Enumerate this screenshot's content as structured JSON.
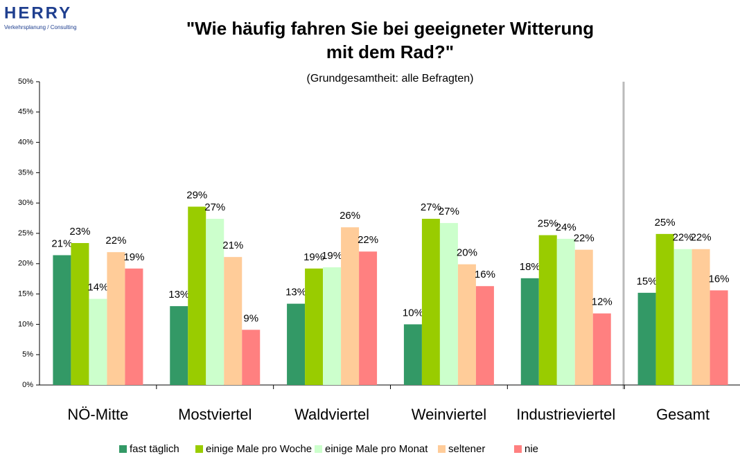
{
  "logo": {
    "name": "HERRY",
    "tagline": "Verkehrsplanung / Consulting"
  },
  "chart_data": {
    "type": "bar",
    "title": [
      "\"Wie häufig fahren Sie bei geeigneter Witterung",
      "mit dem Rad?\""
    ],
    "subtitle": "(Grundgesamtheit: alle Befragten)",
    "categories": [
      "NÖ-Mitte",
      "Mostviertel",
      "Waldviertel",
      "Weinviertel",
      "Industrieviertel",
      "Gesamt"
    ],
    "series": [
      {
        "name": "fast täglich",
        "color": "#339966",
        "values": [
          21.4,
          13.0,
          13.4,
          10.0,
          17.6,
          15.2
        ],
        "value_labels": [
          "21%",
          "13%",
          "13%",
          "10%",
          "18%",
          "15%"
        ]
      },
      {
        "name": "einige Male pro Woche",
        "color": "#99cc00",
        "values": [
          23.4,
          29.4,
          19.2,
          27.4,
          24.7,
          24.9
        ],
        "value_labels": [
          "23%",
          "29%",
          "19%",
          "27%",
          "25%",
          "25%"
        ]
      },
      {
        "name": "einige Male pro Monat",
        "color": "#ccffcc",
        "values": [
          14.2,
          27.4,
          19.4,
          26.7,
          24.1,
          22.4
        ],
        "value_labels": [
          "14%",
          "27%",
          "19%",
          "27%",
          "24%",
          "22%"
        ]
      },
      {
        "name": "seltener",
        "color": "#ffcc99",
        "values": [
          21.9,
          21.1,
          26.0,
          19.9,
          22.3,
          22.4
        ],
        "value_labels": [
          "22%",
          "21%",
          "26%",
          "20%",
          "22%",
          "22%"
        ]
      },
      {
        "name": "nie",
        "color": "#ff8080",
        "values": [
          19.2,
          9.1,
          22.0,
          16.3,
          11.8,
          15.6
        ],
        "value_labels": [
          "19%",
          "9%",
          "22%",
          "16%",
          "12%",
          "16%"
        ]
      }
    ],
    "ylim": [
      0,
      50
    ],
    "yticks": [
      {
        "value": 0,
        "label": "0%"
      },
      {
        "value": 5,
        "label": "5%"
      },
      {
        "value": 10,
        "label": "10%"
      },
      {
        "value": 15,
        "label": "15%"
      },
      {
        "value": 20,
        "label": "20%"
      },
      {
        "value": 25,
        "label": "25%"
      },
      {
        "value": 30,
        "label": "30%"
      },
      {
        "value": 35,
        "label": "35%"
      },
      {
        "value": 40,
        "label": "40%"
      },
      {
        "value": 45,
        "label": "45%"
      },
      {
        "value": 50,
        "label": "50%"
      }
    ],
    "grid": false,
    "legend": "bottom"
  }
}
